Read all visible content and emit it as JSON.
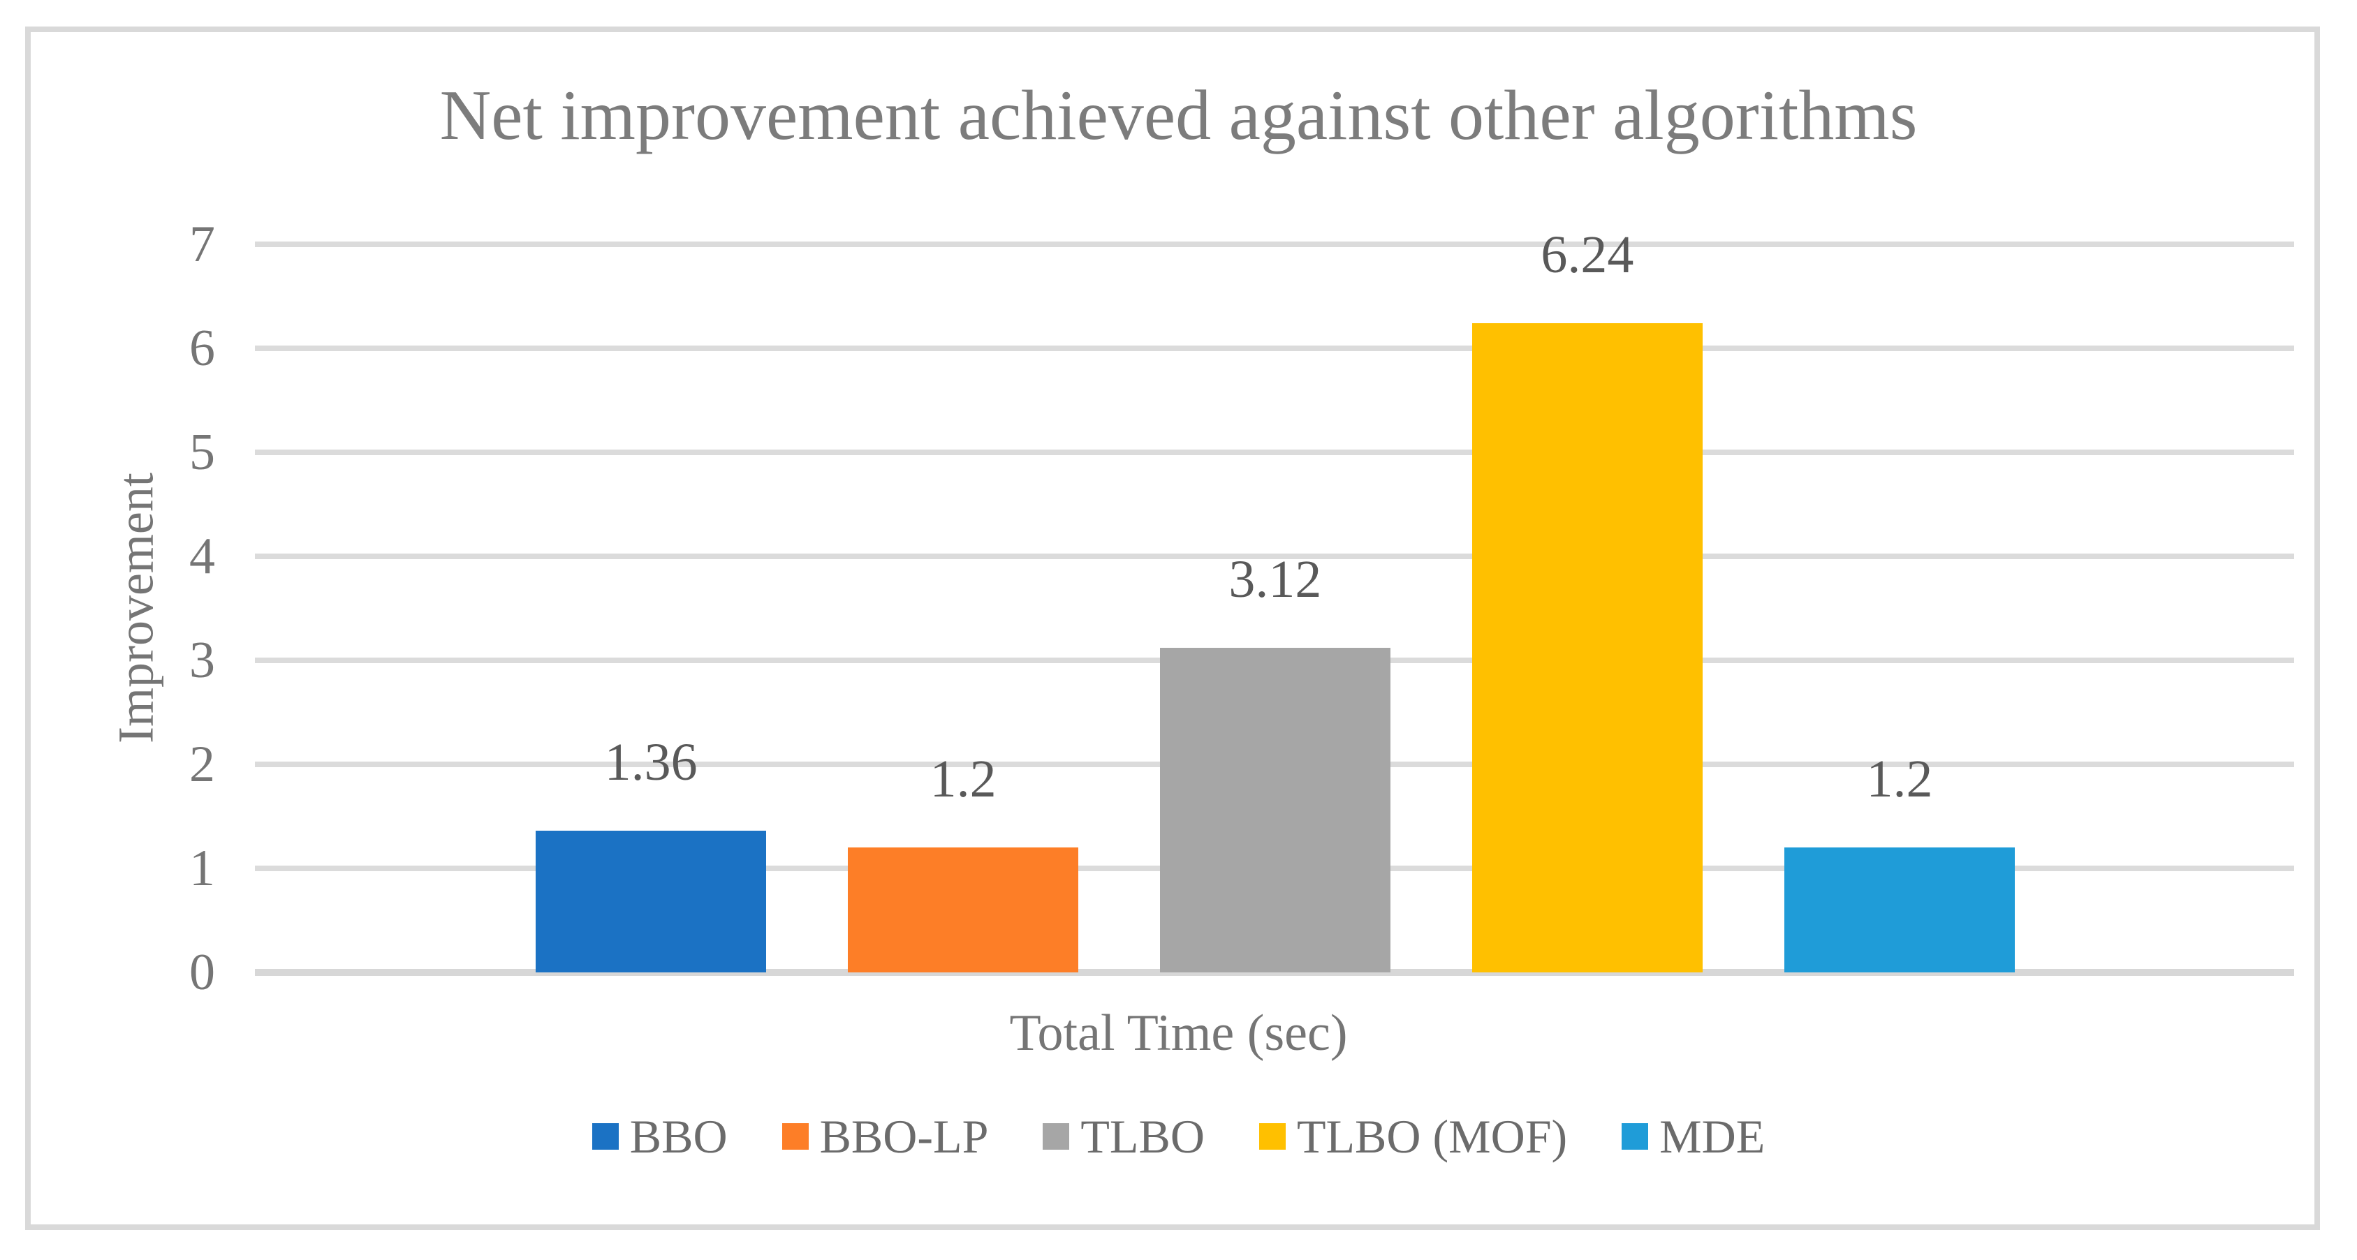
{
  "chart_data": {
    "type": "bar",
    "title": "Net improvement achieved against other algorithms",
    "xlabel": "Total Time (sec)",
    "ylabel": "Improvement",
    "ylim": [
      0,
      7
    ],
    "yticks": [
      "0",
      "1",
      "2",
      "3",
      "4",
      "5",
      "6",
      "7"
    ],
    "grid": true,
    "categories": [
      "BBO",
      "BBO-LP",
      "TLBO",
      "TLBO (MOF)",
      "MDE"
    ],
    "values": [
      1.36,
      1.2,
      3.12,
      6.24,
      1.2
    ],
    "value_labels": [
      "1.36",
      "1.2",
      "3.12",
      "6.24",
      "1.2"
    ],
    "colors": [
      "#1B72C4",
      "#FD7E27",
      "#A6A6A6",
      "#FFC000",
      "#1F9CD8"
    ],
    "legend": {
      "position": "bottom",
      "entries": [
        {
          "label": "BBO",
          "color": "#1B72C4"
        },
        {
          "label": "BBO-LP",
          "color": "#FD7E27"
        },
        {
          "label": "TLBO",
          "color": "#A6A6A6"
        },
        {
          "label": "TLBO (MOF)",
          "color": "#FFC000"
        },
        {
          "label": "MDE",
          "color": "#1F9CD8"
        }
      ]
    },
    "text_colors": {
      "title": "#7C7C7C",
      "axis": "#757575",
      "data_label": "#595959",
      "legend": "#6B6B6B"
    },
    "frame_color": "#D9D9D9",
    "gridline_color": "#DBDBDB"
  }
}
